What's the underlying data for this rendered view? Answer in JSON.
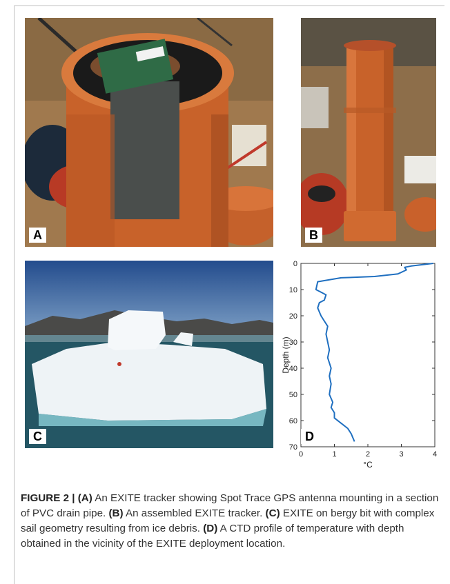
{
  "panels": [
    {
      "label": "A"
    },
    {
      "label": "B"
    },
    {
      "label": "C"
    },
    {
      "label": "D"
    }
  ],
  "colors": {
    "pipe": "#c8622a",
    "series": "#1f6fc0",
    "ice": "#eef3f6",
    "water": "#245664"
  },
  "chart_data": {
    "type": "line",
    "title": "",
    "xlabel": "°C",
    "ylabel": "Depth (m)",
    "xlim": [
      0,
      4
    ],
    "ylim": [
      0,
      70
    ],
    "y_inverted": true,
    "grid": false,
    "xticks": [
      "0",
      "1",
      "2",
      "3",
      "4"
    ],
    "yticks": [
      "0",
      "10",
      "20",
      "30",
      "40",
      "50",
      "60",
      "70"
    ],
    "series": [
      {
        "name": "",
        "color": "#1f6fc0",
        "x": [
          3.95,
          3.3,
          3.1,
          3.15,
          2.9,
          2.2,
          1.2,
          0.5,
          0.45,
          0.6,
          0.75,
          0.7,
          0.55,
          0.5,
          0.6,
          0.7,
          0.8,
          0.75,
          0.8,
          0.85,
          0.8,
          0.9,
          0.85,
          0.9,
          0.85,
          0.95,
          0.9,
          1.0,
          1.0,
          1.2,
          1.4,
          1.5,
          1.6
        ],
        "y": [
          0,
          1,
          1.5,
          2.5,
          4,
          5,
          5.5,
          7,
          10,
          11,
          12,
          14,
          15,
          17,
          20,
          22,
          24,
          27,
          30,
          33,
          36,
          40,
          43,
          46,
          50,
          53,
          55,
          57,
          59,
          61,
          63,
          65,
          68
        ]
      }
    ]
  },
  "caption": {
    "figure_label": "FIGURE 2 |",
    "parts": [
      {
        "label": "(A)",
        "text": " An EXITE tracker showing Spot Trace GPS antenna mounting in a section of PVC drain pipe. "
      },
      {
        "label": "(B)",
        "text": " An assembled EXITE tracker. "
      },
      {
        "label": "(C)",
        "text": " EXITE on bergy bit with complex sail geometry resulting from ice debris. "
      },
      {
        "label": "(D)",
        "text": " A CTD profile of temperature with depth obtained in the vicinity of the EXITE deployment location."
      }
    ]
  }
}
